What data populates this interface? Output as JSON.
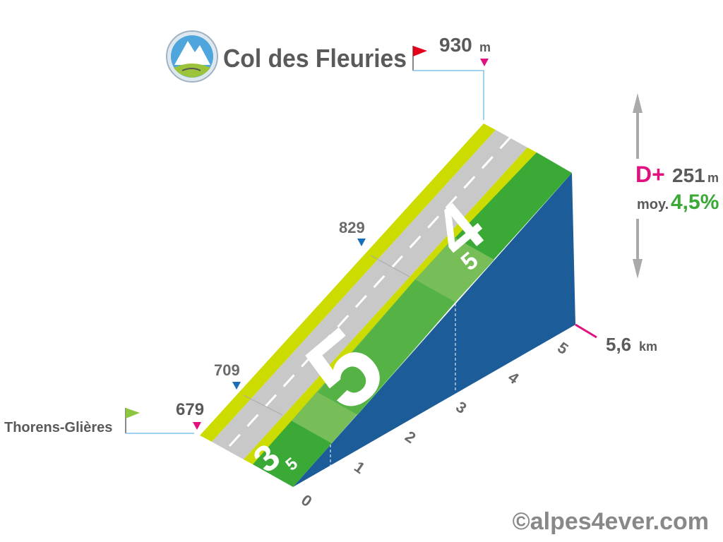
{
  "title": "Col des Fleuries",
  "summit": {
    "altitude": 930,
    "unit": "m"
  },
  "start": {
    "name": "Thorens-Glières",
    "altitude": 679
  },
  "waypoints": [
    709,
    829
  ],
  "gain": {
    "label": "D+",
    "value": 251,
    "unit": "m"
  },
  "average": {
    "label": "moy.",
    "value": "4,5%"
  },
  "distance": {
    "value": "5,6",
    "unit": "km"
  },
  "km_ticks": [
    "0",
    "1",
    "2",
    "3",
    "4",
    "5"
  ],
  "segments": [
    {
      "grade": "3",
      "decimal": "5"
    },
    {
      "grade": "5"
    },
    {
      "grade": "4",
      "decimal": "5"
    }
  ],
  "credit": "©alpes4ever.com"
}
